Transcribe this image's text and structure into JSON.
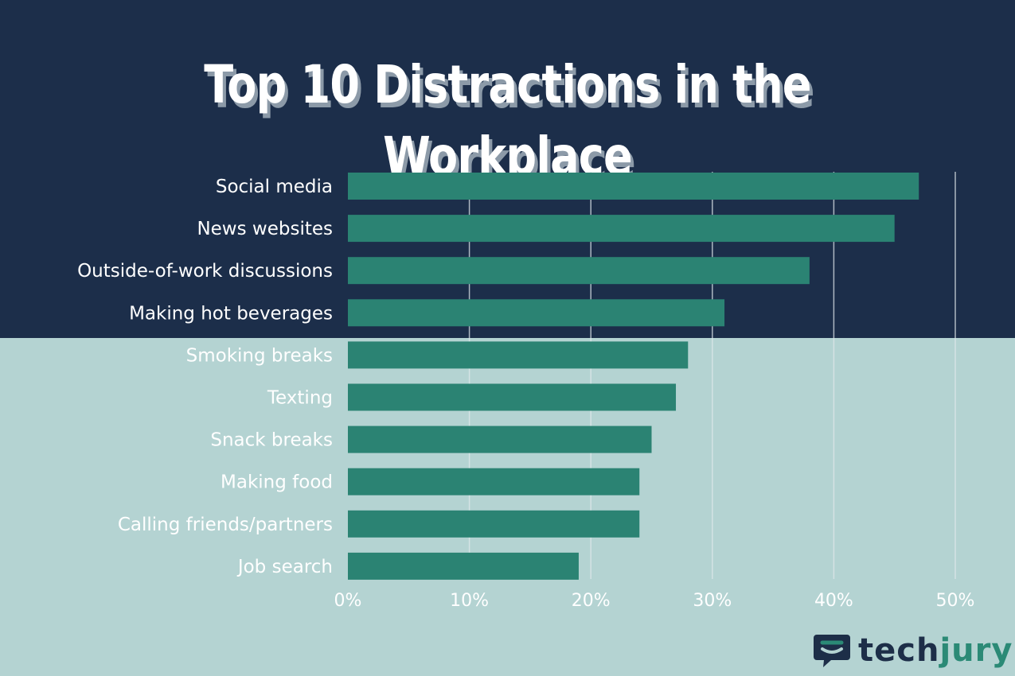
{
  "title": "Top 10 Distractions in the Workplace",
  "colors": {
    "top_background": "#1c2e4a",
    "bottom_background": "#b4d3d2",
    "bar": "#2b8373",
    "gridline": "#dfe7ea",
    "text": "#ffffff",
    "title_shadow": "#8c9aa8",
    "logo_dark": "#1d2e48",
    "logo_accent": "#2b8a76"
  },
  "chart_data": {
    "type": "bar",
    "orientation": "horizontal",
    "categories": [
      "Social media",
      "News websites",
      "Outside-of-work discussions",
      "Making hot beverages",
      "Smoking breaks",
      "Texting",
      "Snack breaks",
      "Making food",
      "Calling friends/partners",
      "Job search"
    ],
    "values": [
      47,
      45,
      38,
      31,
      28,
      27,
      25,
      24,
      24,
      19
    ],
    "xlim": [
      0,
      50
    ],
    "x_ticks": [
      "0%",
      "10%",
      "20%",
      "30%",
      "40%",
      "50%"
    ],
    "grid": true
  },
  "logo": {
    "part1": "tech",
    "part2": "jury",
    "icon": "chat-bubble-icon"
  }
}
